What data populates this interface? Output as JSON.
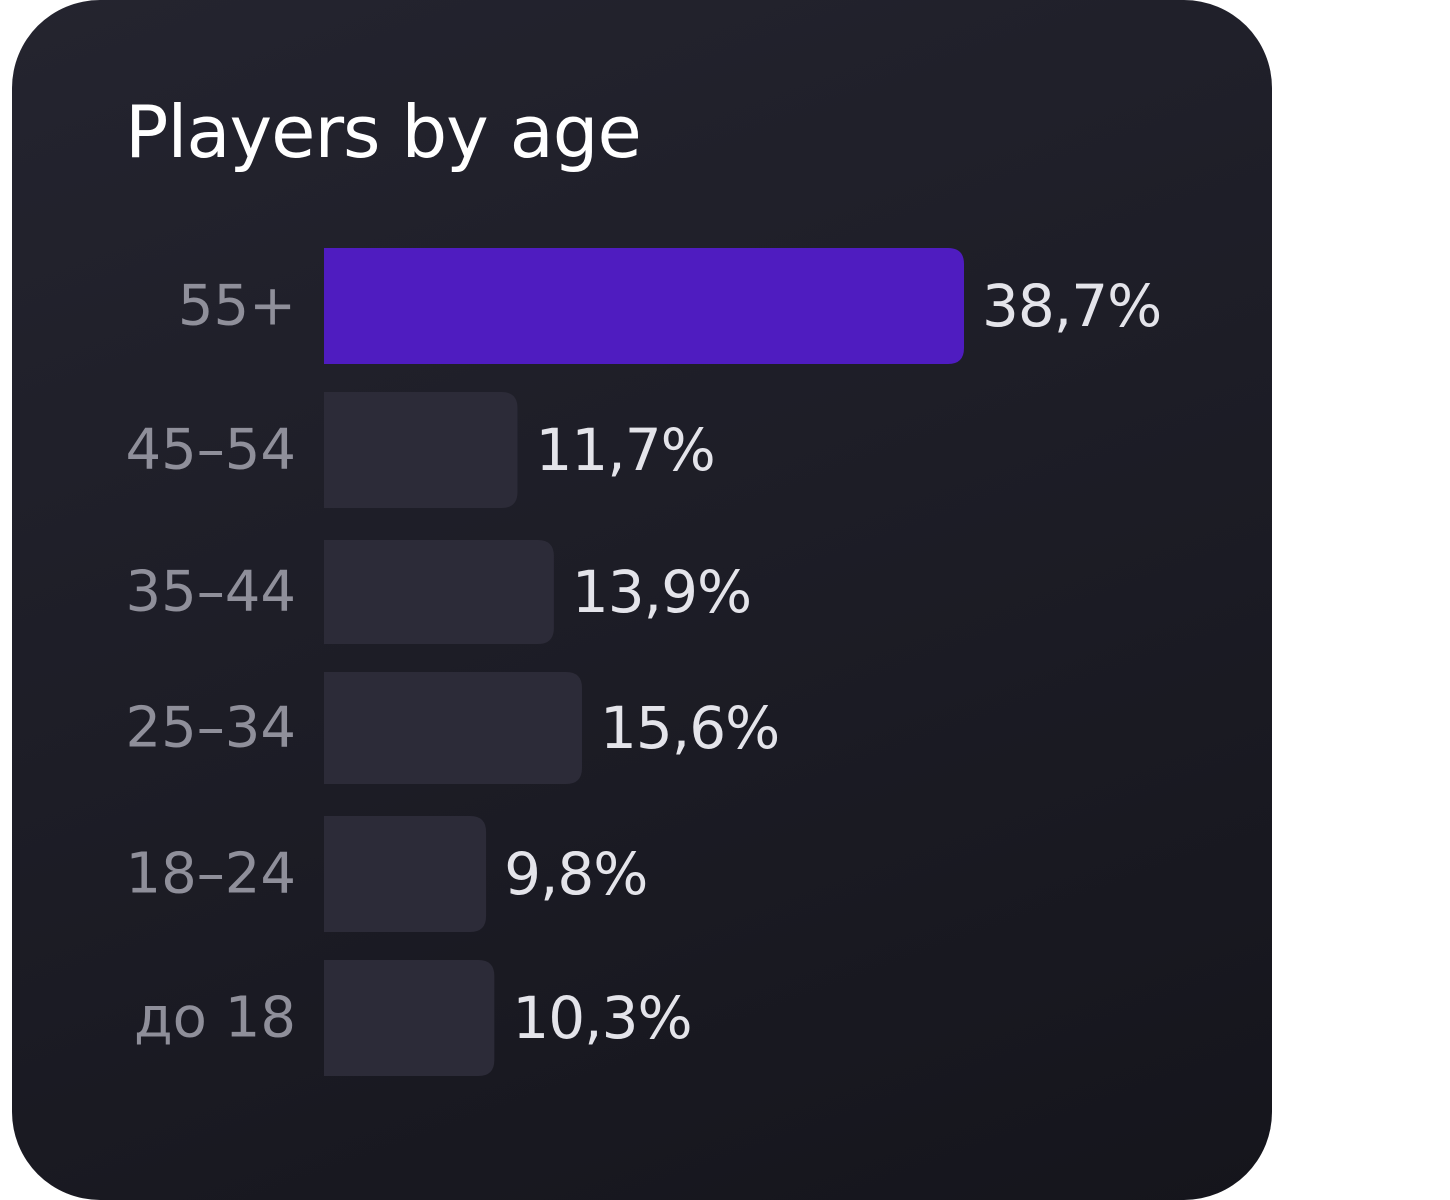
{
  "title": "Players by age",
  "colors": {
    "card_background": "#1f1f28",
    "highlight_bar": "#4f1cc0",
    "bar": "#2c2b38",
    "category_text": "#8f8f9a",
    "value_text": "#e4e4ea"
  },
  "chart_data": {
    "type": "bar",
    "orientation": "horizontal",
    "title": "Players by age",
    "categories": [
      "55+",
      "45–54",
      "35–44",
      "25–34",
      "18–24",
      "до 18"
    ],
    "values": [
      38.7,
      11.7,
      13.9,
      15.6,
      9.8,
      10.3
    ],
    "value_labels": [
      "38,7%",
      "11,7%",
      "13,9%",
      "15,6%",
      "9,8%",
      "10,3%"
    ],
    "highlight_index": 0,
    "xlabel": "",
    "ylabel": "",
    "xlim": [
      0,
      38.7
    ],
    "grid": false,
    "legend": "none"
  }
}
